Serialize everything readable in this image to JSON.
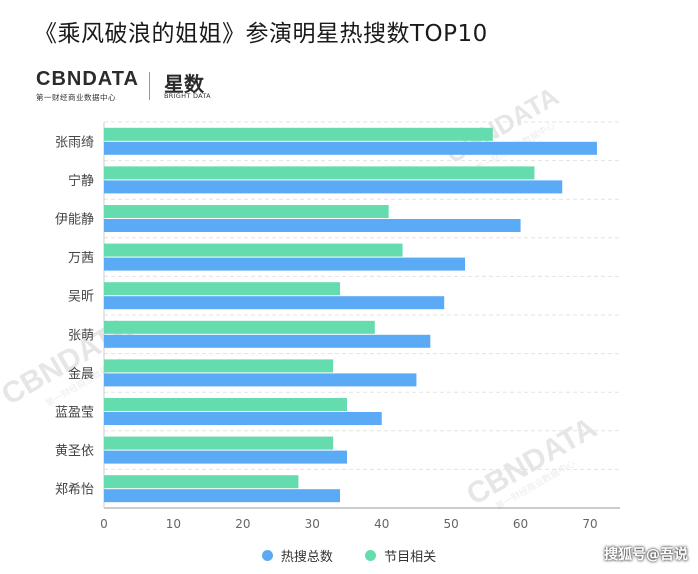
{
  "title": "《乘风破浪的姐姐》参演明星热搜数TOP10",
  "logo": {
    "brand": "CBNDATA",
    "brand_sub": "第一财经商业数据中心",
    "product": "星数",
    "product_sub": "BRIGHT DATA"
  },
  "watermark": {
    "text": "CBNDATA",
    "sub": "第一财经商业数据中心"
  },
  "footer_mark": "搜狐号@吾说",
  "colors": {
    "total": "#5aaaf5",
    "program": "#64dcae"
  },
  "chart_data": {
    "type": "bar",
    "orientation": "horizontal",
    "categories": [
      "张雨绮",
      "宁静",
      "伊能静",
      "万茜",
      "吴昕",
      "张萌",
      "金晨",
      "蓝盈莹",
      "黄圣依",
      "郑希怡"
    ],
    "series": [
      {
        "name": "热搜总数",
        "values": [
          71,
          66,
          60,
          52,
          49,
          47,
          45,
          40,
          35,
          34
        ]
      },
      {
        "name": "节目相关",
        "values": [
          56,
          62,
          41,
          43,
          34,
          39,
          33,
          35,
          33,
          28
        ]
      }
    ],
    "xlim": [
      0,
      70
    ],
    "xticks": [
      "0",
      "10",
      "20",
      "30",
      "40",
      "50",
      "60",
      "70"
    ],
    "grid": true,
    "legend": "bottom"
  }
}
